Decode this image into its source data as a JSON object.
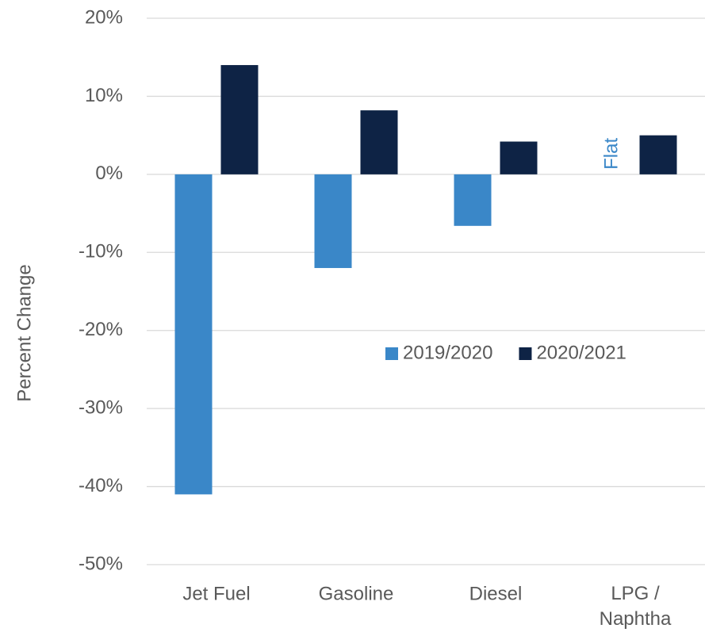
{
  "chart_data": {
    "type": "bar",
    "y_label": "Percent Change",
    "categories": [
      "Jet Fuel",
      "Gasoline",
      "Diesel",
      "LPG / Naphtha"
    ],
    "series": [
      {
        "name": "2019/2020",
        "color": "#3a87c8",
        "values": [
          -41,
          -12,
          -6.6,
          null
        ]
      },
      {
        "name": "2020/2021",
        "color": "#0e2345",
        "values": [
          14,
          8.2,
          4.2,
          5
        ]
      }
    ],
    "annotations": [
      {
        "text": "Flat",
        "category": 3,
        "series": 0
      }
    ],
    "ylim": [
      -50,
      20
    ],
    "yticks": [
      {
        "value": -50,
        "label": "-50%"
      },
      {
        "value": -40,
        "label": "-40%"
      },
      {
        "value": -30,
        "label": "-30%"
      },
      {
        "value": -20,
        "label": "-20%"
      },
      {
        "value": -10,
        "label": "-10%"
      },
      {
        "value": 0,
        "label": "0%"
      },
      {
        "value": 10,
        "label": "10%"
      },
      {
        "value": 20,
        "label": "20%"
      }
    ],
    "grid": true,
    "legend": "center-right"
  }
}
